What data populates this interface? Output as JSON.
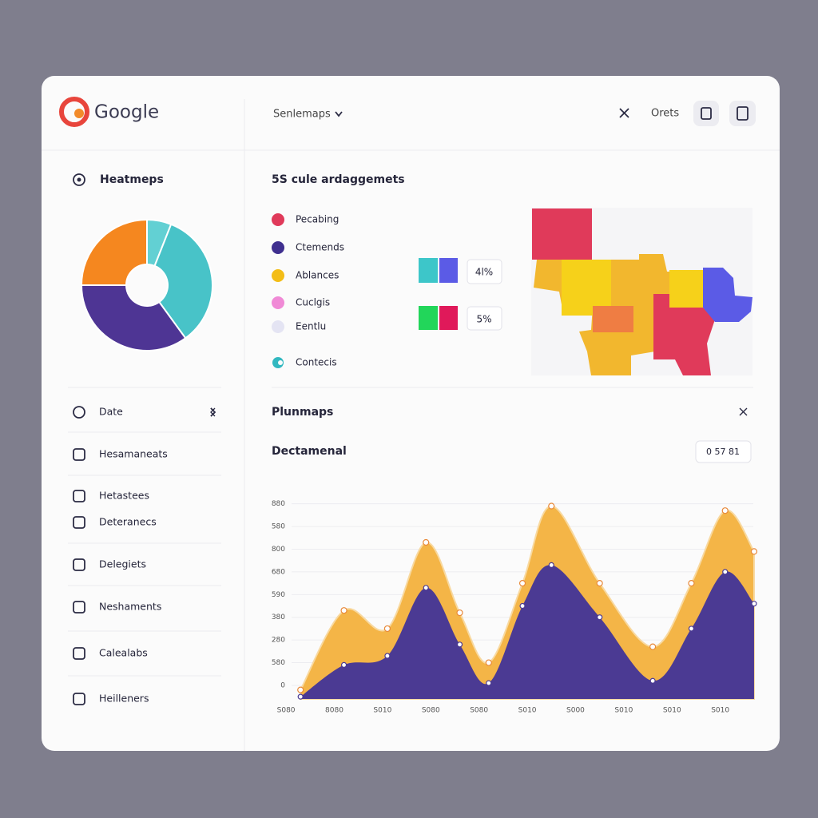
{
  "header": {
    "logo": "Google",
    "dropdown": "Senlemaps",
    "link": "Orets"
  },
  "sidebar": {
    "title": "Heatmeps",
    "nav": [
      "Date",
      "Hesamaneats",
      "Hetastees",
      "Deteranecs",
      "Delegiets",
      "Neshaments",
      "Calealabs",
      "Heilleners"
    ]
  },
  "panel": {
    "title": "5S cule ardaggemets",
    "legend": [
      "Pecabing",
      "Ctemends",
      "Ablances",
      "Cuclgis",
      "Eentlu",
      "Contecis"
    ],
    "stats": [
      "4l%",
      "5%"
    ]
  },
  "plunmaps": {
    "title": "Plunmaps",
    "subtitle": "Dectamenal",
    "badge": "0 57 81"
  },
  "chart_data": [
    {
      "type": "pie",
      "values": [
        6,
        34,
        35,
        25
      ],
      "colors": [
        "#62d0d3",
        "#48c3c8",
        "#4e3594",
        "#f5871f"
      ]
    },
    {
      "type": "area",
      "x": [
        0.3,
        1.2,
        2.1,
        2.9,
        3.6,
        4.2,
        4.9,
        5.5,
        6.5,
        7.6,
        8.4,
        9.1,
        9.7
      ],
      "series": [
        {
          "color": "#f4b547",
          "values": [
            -0.2,
            3.3,
            2.5,
            6.3,
            3.2,
            1.0,
            4.5,
            7.9,
            4.5,
            1.7,
            4.5,
            7.7,
            5.9
          ]
        },
        {
          "color": "#4b3a93",
          "values": [
            -0.5,
            0.9,
            1.3,
            4.3,
            1.8,
            0.1,
            3.5,
            5.3,
            3.0,
            0.2,
            2.5,
            5.0,
            3.6
          ]
        }
      ],
      "xlim": [
        -0.2,
        9.8
      ],
      "xticks": [
        {
          "value": 0,
          "label": "S080"
        },
        {
          "value": 1,
          "label": "8080"
        },
        {
          "value": 2,
          "label": "S010"
        },
        {
          "value": 3,
          "label": "S080"
        },
        {
          "value": 4,
          "label": "S080"
        },
        {
          "value": 5,
          "label": "S010"
        },
        {
          "value": 6,
          "label": "S000"
        },
        {
          "value": 7,
          "label": "S010"
        },
        {
          "value": 8,
          "label": "S010"
        },
        {
          "value": 9,
          "label": "S010"
        }
      ],
      "ylim": [
        -0.6,
        8.2
      ],
      "yticks": [
        0,
        {
          "value": 1,
          "label": "580"
        },
        {
          "value": 2,
          "label": "280"
        },
        {
          "value": 3,
          "label": "380"
        },
        {
          "value": 4,
          "label": "590"
        },
        {
          "value": 5,
          "label": "680"
        },
        {
          "value": 6,
          "label": "800"
        },
        {
          "value": 7,
          "label": "580"
        },
        {
          "value": 8,
          "label": "880"
        }
      ],
      "grid": true
    }
  ]
}
